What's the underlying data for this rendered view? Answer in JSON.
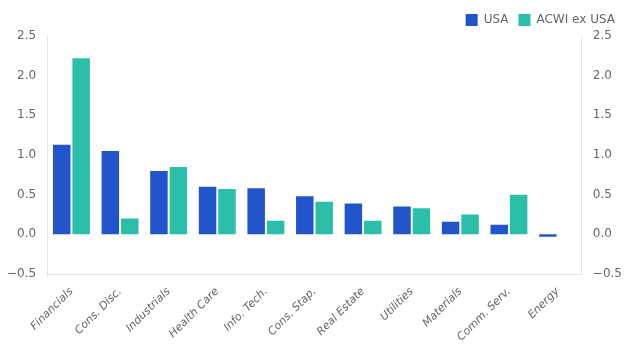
{
  "chart_data": {
    "type": "bar",
    "categories": [
      "Financials",
      "Cons. Disc.",
      "Industrials",
      "Health Care",
      "Info. Tech.",
      "Cons. Stap.",
      "Real Estate",
      "Utilities",
      "Materials",
      "Comm. Serv.",
      "Energy"
    ],
    "series": [
      {
        "name": "USA",
        "color": "#2255cc",
        "values": [
          1.13,
          1.05,
          0.8,
          0.6,
          0.58,
          0.48,
          0.39,
          0.35,
          0.16,
          0.12,
          -0.03
        ]
      },
      {
        "name": "ACWI ex USA",
        "color": "#2bbfaa",
        "values": [
          2.22,
          0.2,
          0.85,
          0.57,
          0.17,
          0.41,
          0.17,
          0.33,
          0.25,
          0.5,
          0.0
        ]
      }
    ],
    "ylim": [
      -0.5,
      2.5
    ],
    "yticks": [
      {
        "value": -0.5,
        "label": "−0.5"
      },
      {
        "value": 0.0,
        "label": "0.0"
      },
      0.5,
      {
        "value": 1.0,
        "label": "1.0"
      },
      1.5,
      {
        "value": 2.0,
        "label": "2.0"
      },
      2.5
    ],
    "y2lim": [
      -0.5,
      2.5
    ],
    "y2ticks": [
      {
        "value": -0.5,
        "label": "−0.5"
      },
      {
        "value": 0.0,
        "label": "0.0"
      },
      0.5,
      {
        "value": 1.0,
        "label": "1.0"
      },
      1.5,
      {
        "value": 2.0,
        "label": "2.0"
      },
      2.5
    ],
    "grid": false,
    "legend": "upper right"
  }
}
